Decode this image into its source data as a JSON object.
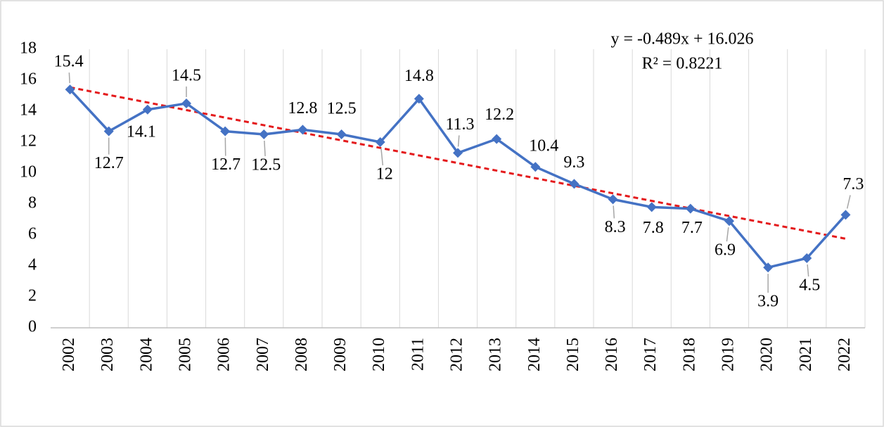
{
  "chart_data": {
    "type": "line",
    "categories": [
      "2002",
      "2003",
      "2004",
      "2005",
      "2006",
      "2007",
      "2008",
      "2009",
      "2010",
      "2011",
      "2012",
      "2013",
      "2014",
      "2015",
      "2016",
      "2017",
      "2018",
      "2019",
      "2020",
      "2021",
      "2022"
    ],
    "series": [
      {
        "color": "#4472c4",
        "values": [
          15.4,
          12.7,
          14.1,
          14.5,
          12.7,
          12.5,
          12.8,
          12.5,
          12,
          14.8,
          11.3,
          12.2,
          10.4,
          9.3,
          8.3,
          7.8,
          7.7,
          6.9,
          3.9,
          4.5,
          7.3
        ]
      }
    ],
    "ylim": [
      0,
      18
    ],
    "yticks": [
      0,
      2,
      4,
      6,
      8,
      10,
      12,
      14,
      16,
      18
    ],
    "grid": true,
    "trendline": {
      "label": "y = -0.489x + 16.026",
      "r2_label": "R² = 0.8221",
      "slope": -0.489,
      "intercept": 16.026,
      "color": "#e41a1c"
    }
  }
}
